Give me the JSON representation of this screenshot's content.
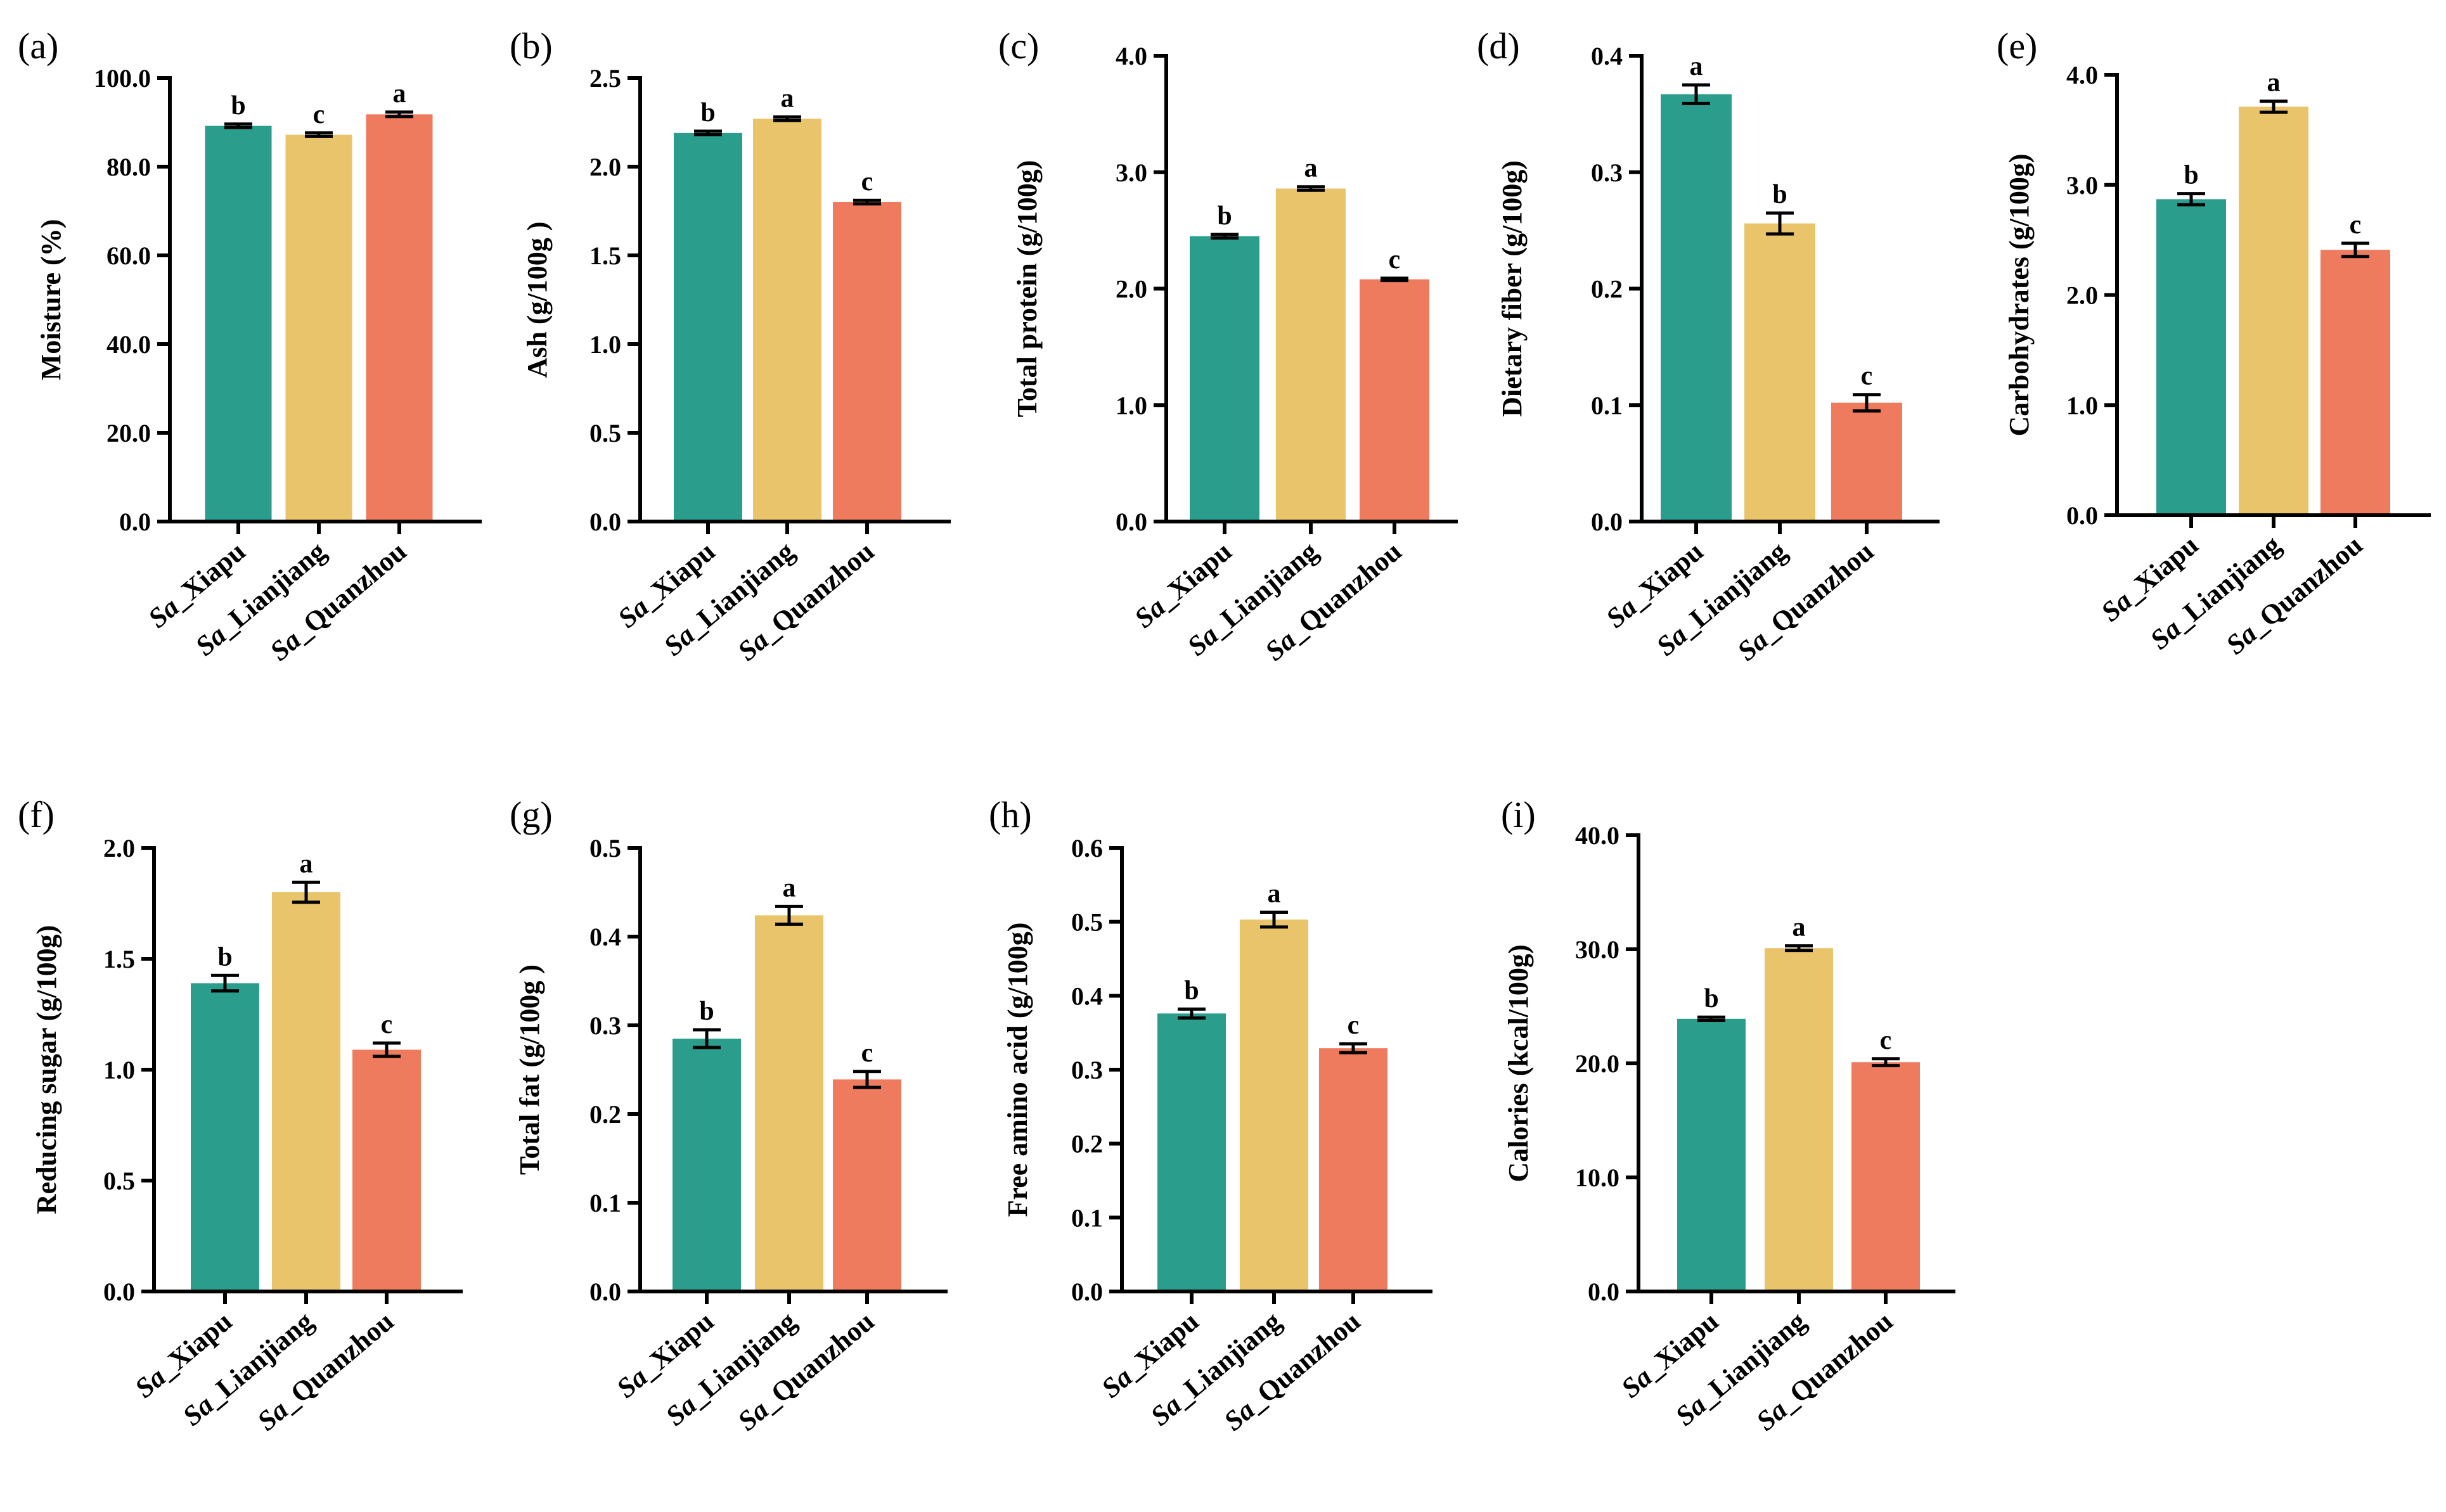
{
  "colors": [
    "#2a9d8c",
    "#e9c46a",
    "#ee7b5e"
  ],
  "chart_data": [
    {
      "type": "bar",
      "panel": "(a)",
      "ylabel": "Moisture (%)",
      "categories": [
        "Sa_Xiapu",
        "Sa_Lianjiang",
        "Sa_Quanzhou"
      ],
      "values": [
        89.2,
        87.2,
        91.8
      ],
      "errors": [
        0.4,
        0.4,
        0.5
      ],
      "letters": [
        "b",
        "c",
        "a"
      ],
      "ylim": [
        0,
        100
      ],
      "ticks": [
        "0.0",
        "20.0",
        "40.0",
        "60.0",
        "80.0",
        "100.0"
      ]
    },
    {
      "type": "bar",
      "panel": "(b)",
      "ylabel": "Ash (g/100g )",
      "categories": [
        "Sa_Xiapu",
        "Sa_Lianjiang",
        "Sa_Quanzhou"
      ],
      "values": [
        2.19,
        2.27,
        1.8
      ],
      "errors": [
        0.01,
        0.01,
        0.01
      ],
      "letters": [
        "b",
        "a",
        "c"
      ],
      "ylim": [
        0,
        2.5
      ],
      "ticks": [
        "0.0",
        "0.5",
        "1.0",
        "1.5",
        "2.0",
        "2.5"
      ]
    },
    {
      "type": "bar",
      "panel": "(c)",
      "ylabel": "Total protein (g/100g)",
      "categories": [
        "Sa_Xiapu",
        "Sa_Lianjiang",
        "Sa_Quanzhou"
      ],
      "values": [
        2.45,
        2.86,
        2.08
      ],
      "errors": [
        0.015,
        0.015,
        0.01
      ],
      "letters": [
        "b",
        "a",
        "c"
      ],
      "ylim": [
        0,
        4
      ],
      "ticks": [
        "0.0",
        "1.0",
        "2.0",
        "3.0",
        "4.0"
      ]
    },
    {
      "type": "bar",
      "panel": "(d)",
      "ylabel": "Dietary fiber (g/100g)",
      "categories": [
        "Sa_Xiapu",
        "Sa_Lianjiang",
        "Sa_Quanzhou"
      ],
      "values": [
        0.367,
        0.256,
        0.102
      ],
      "errors": [
        0.008,
        0.009,
        0.007
      ],
      "letters": [
        "a",
        "b",
        "c"
      ],
      "ylim": [
        0,
        0.4
      ],
      "ticks": [
        "0.0",
        "0.1",
        "0.2",
        "0.3",
        "0.4"
      ]
    },
    {
      "type": "bar",
      "panel": "(e)",
      "ylabel": "Carbohydrates (g/100g)",
      "categories": [
        "Sa_Xiapu",
        "Sa_Lianjiang",
        "Sa_Quanzhou"
      ],
      "values": [
        2.87,
        3.71,
        2.41
      ],
      "errors": [
        0.05,
        0.05,
        0.06
      ],
      "letters": [
        "b",
        "a",
        "c"
      ],
      "ylim": [
        0,
        4
      ],
      "ticks": [
        "0.0",
        "1.0",
        "2.0",
        "3.0",
        "4.0"
      ]
    },
    {
      "type": "bar",
      "panel": "(f)",
      "ylabel": "Reducing sugar (g/100g)",
      "categories": [
        "Sa_Xiapu",
        "Sa_Lianjiang",
        "Sa_Quanzhou"
      ],
      "values": [
        1.39,
        1.8,
        1.09
      ],
      "errors": [
        0.035,
        0.045,
        0.03
      ],
      "letters": [
        "b",
        "a",
        "c"
      ],
      "ylim": [
        0,
        2
      ],
      "ticks": [
        "0.0",
        "0.5",
        "1.0",
        "1.5",
        "2.0"
      ]
    },
    {
      "type": "bar",
      "panel": "(g)",
      "ylabel": "Total fat (g/100g )",
      "categories": [
        "Sa_Xiapu",
        "Sa_Lianjiang",
        "Sa_Quanzhou"
      ],
      "values": [
        0.285,
        0.424,
        0.239
      ],
      "errors": [
        0.01,
        0.01,
        0.009
      ],
      "letters": [
        "b",
        "a",
        "c"
      ],
      "ylim": [
        0,
        0.5
      ],
      "ticks": [
        "0.0",
        "0.1",
        "0.2",
        "0.3",
        "0.4",
        "0.5"
      ]
    },
    {
      "type": "bar",
      "panel": "(h)",
      "ylabel": "Free amino acid (g/100g)",
      "categories": [
        "Sa_Xiapu",
        "Sa_Lianjiang",
        "Sa_Quanzhou"
      ],
      "values": [
        0.376,
        0.503,
        0.329
      ],
      "errors": [
        0.006,
        0.01,
        0.006
      ],
      "letters": [
        "b",
        "a",
        "c"
      ],
      "ylim": [
        0,
        0.6
      ],
      "ticks": [
        "0.0",
        "0.1",
        "0.2",
        "0.3",
        "0.4",
        "0.5",
        "0.6"
      ]
    },
    {
      "type": "bar",
      "panel": "(i)",
      "ylabel": "Calories (kcal/100g)",
      "categories": [
        "Sa_Xiapu",
        "Sa_Lianjiang",
        "Sa_Quanzhou"
      ],
      "values": [
        23.9,
        30.1,
        20.1
      ],
      "errors": [
        0.15,
        0.2,
        0.3
      ],
      "letters": [
        "b",
        "a",
        "c"
      ],
      "ylim": [
        0,
        40
      ],
      "ticks": [
        "0.0",
        "10.0",
        "20.0",
        "30.0",
        "40.0"
      ]
    }
  ]
}
